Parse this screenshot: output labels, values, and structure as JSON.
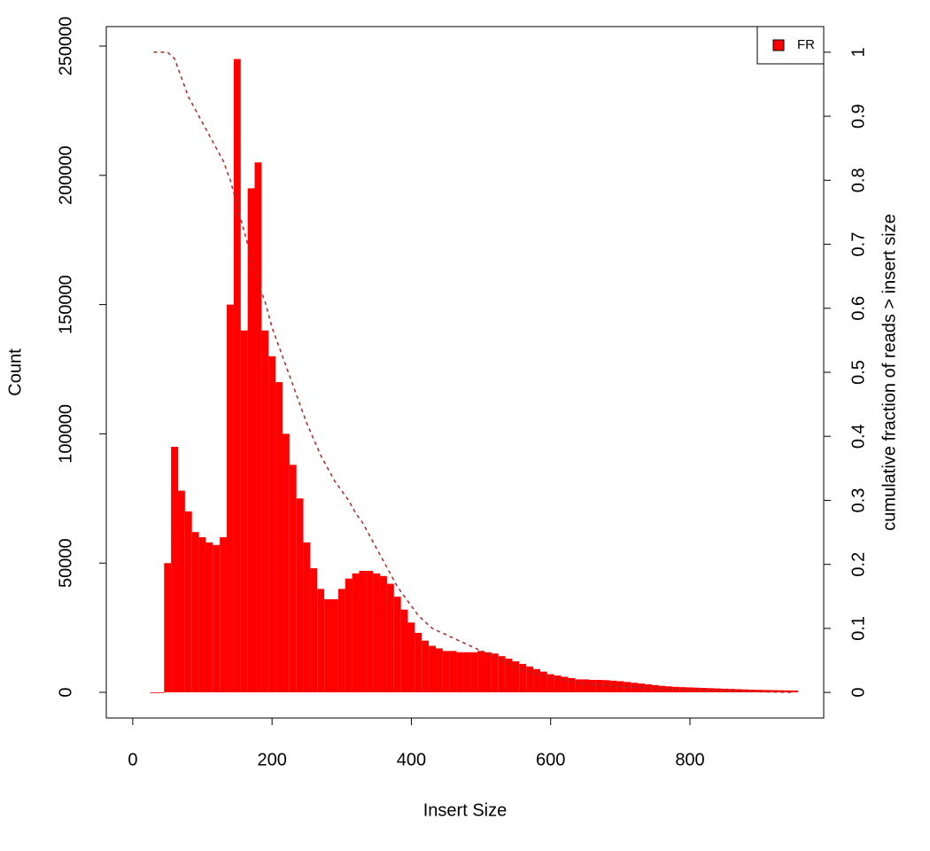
{
  "chart_data": {
    "type": "bar",
    "xlabel": "Insert Size",
    "ylabel": "Count",
    "y2label": "cumulative fraction of reads > insert size",
    "x": [
      30,
      40,
      50,
      60,
      70,
      80,
      90,
      100,
      110,
      120,
      130,
      140,
      150,
      160,
      170,
      180,
      190,
      200,
      210,
      220,
      230,
      240,
      250,
      260,
      270,
      280,
      290,
      300,
      310,
      320,
      330,
      340,
      350,
      360,
      370,
      380,
      390,
      400,
      410,
      420,
      430,
      440,
      450,
      460,
      470,
      480,
      490,
      500,
      510,
      520,
      530,
      540,
      550,
      560,
      570,
      580,
      590,
      600,
      610,
      620,
      630,
      640,
      650,
      660,
      670,
      680,
      690,
      700,
      710,
      720,
      730,
      740,
      750,
      760,
      770,
      780,
      790,
      800,
      810,
      820,
      830,
      840,
      850,
      860,
      870,
      880,
      890,
      900,
      910,
      920,
      930,
      940,
      950
    ],
    "series": [
      {
        "name": "FR",
        "color": "#ff0000",
        "values": [
          0,
          0,
          50000,
          95000,
          78000,
          70000,
          62000,
          60000,
          58000,
          57000,
          60000,
          150000,
          245000,
          140000,
          195000,
          205000,
          140000,
          130000,
          120000,
          100000,
          88000,
          75000,
          58000,
          48000,
          40000,
          36000,
          36000,
          40000,
          44000,
          46000,
          47000,
          47000,
          46000,
          45000,
          42000,
          37000,
          32000,
          27000,
          23000,
          20000,
          18000,
          17000,
          16000,
          16000,
          15500,
          15500,
          15500,
          16000,
          15500,
          15000,
          14000,
          13000,
          12000,
          11000,
          10000,
          9000,
          8000,
          7000,
          6500,
          6000,
          5500,
          5000,
          5000,
          4800,
          4800,
          4700,
          4500,
          4300,
          4000,
          3700,
          3400,
          3100,
          2800,
          2500,
          2300,
          2100,
          2000,
          1900,
          1800,
          1700,
          1600,
          1500,
          1400,
          1300,
          1200,
          1100,
          1000,
          950,
          900,
          850,
          800,
          750,
          700
        ]
      },
      {
        "type": "line",
        "axis": "y2",
        "color": "#a52a2a",
        "line_style": "dashed",
        "values": [
          1,
          1,
          1,
          0.99,
          0.96,
          0.93,
          0.91,
          0.89,
          0.87,
          0.85,
          0.83,
          0.8,
          0.76,
          0.72,
          0.68,
          0.64,
          0.61,
          0.57,
          0.54,
          0.51,
          0.48,
          0.45,
          0.42,
          0.395,
          0.37,
          0.35,
          0.33,
          0.315,
          0.3,
          0.28,
          0.265,
          0.245,
          0.225,
          0.205,
          0.185,
          0.165,
          0.15,
          0.135,
          0.12,
          0.11,
          0.1,
          0.095,
          0.09,
          0.085,
          0.08,
          0.075,
          0.07,
          0.065,
          0.06,
          0.055,
          0.05,
          0.045,
          0.04,
          0.035,
          0.032,
          0.029,
          0.026,
          0.023,
          0.021,
          0.019,
          0.017,
          0.015,
          0.014,
          0.013,
          0.012,
          0.011,
          0.01,
          0.009,
          0.0085,
          0.008,
          0.0075,
          0.007,
          0.0065,
          0.006,
          0.0055,
          0.005,
          0.0045,
          0.004,
          0.0037,
          0.0034,
          0.0031,
          0.0028,
          0.0025,
          0.0022,
          0.0019,
          0.0016,
          0.0013,
          0.001,
          0.0008,
          0.0006,
          0.0004,
          0.0002,
          0
        ]
      }
    ],
    "xlim": [
      -38,
      992
    ],
    "xticks": [
      0,
      200,
      400,
      600,
      800
    ],
    "ylim": [
      -9945,
      257545
    ],
    "yticks": [
      0,
      50000,
      100000,
      150000,
      200000,
      250000
    ],
    "y2lim": [
      -0.04,
      1.04
    ],
    "y2ticks": [
      0,
      0.1,
      0.2,
      0.3,
      0.4,
      0.5,
      0.6,
      0.7,
      0.8,
      0.9,
      1
    ],
    "legend": "topright"
  }
}
